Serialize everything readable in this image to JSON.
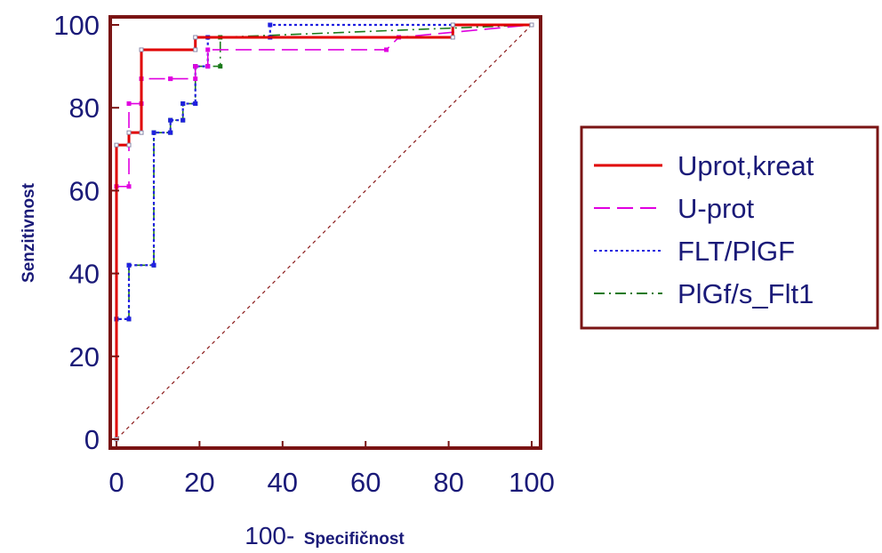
{
  "chart_data": {
    "type": "line",
    "xlabel": {
      "prefix": "100-",
      "word": "Specifičnost"
    },
    "ylabel": "Senzitivnost",
    "xlim": [
      0,
      100
    ],
    "ylim": [
      0,
      100
    ],
    "x_ticks": [
      "0",
      "20",
      "40",
      "60",
      "80",
      "100"
    ],
    "y_ticks": [
      "0",
      "20",
      "40",
      "60",
      "80",
      "100"
    ],
    "grid": false,
    "legend_position": "right",
    "reference_line": {
      "x": [
        0,
        100
      ],
      "y": [
        0,
        100
      ],
      "color": "#8b1a1a",
      "style": "dotted"
    },
    "frame_color": "#7a1414",
    "series": [
      {
        "name": "Uprot,kreat",
        "color": "#e00000",
        "style": "solid",
        "x": [
          0,
          0,
          3,
          3,
          6,
          6,
          19,
          19,
          81,
          81,
          100
        ],
        "y": [
          0,
          71,
          71,
          74,
          74,
          94,
          94,
          97,
          97,
          100,
          100
        ]
      },
      {
        "name": "U-prot",
        "color": "#e000e0",
        "style": "dashed",
        "x": [
          0,
          0,
          3,
          3,
          6,
          6,
          13,
          13,
          19,
          19,
          22,
          22,
          65,
          68,
          100
        ],
        "y": [
          0,
          61,
          61,
          81,
          81,
          87,
          87,
          87,
          87,
          90,
          90,
          94,
          94,
          97,
          100
        ]
      },
      {
        "name": "FLT/PlGF",
        "color": "#2020e0",
        "style": "dotted",
        "x": [
          0,
          0,
          3,
          3,
          9,
          9,
          13,
          13,
          16,
          16,
          19,
          19,
          22,
          22,
          37,
          37,
          100
        ],
        "y": [
          0,
          29,
          29,
          42,
          42,
          74,
          74,
          77,
          77,
          81,
          81,
          90,
          90,
          97,
          97,
          100,
          100
        ]
      },
      {
        "name": "PlGf/s_Flt1",
        "color": "#1a7a1a",
        "style": "dashdot",
        "x": [
          0,
          0,
          3,
          3,
          9,
          9,
          13,
          13,
          16,
          16,
          19,
          19,
          25,
          25,
          100
        ],
        "y": [
          0,
          29,
          29,
          42,
          42,
          74,
          74,
          77,
          77,
          81,
          81,
          90,
          90,
          97,
          100
        ]
      }
    ]
  }
}
